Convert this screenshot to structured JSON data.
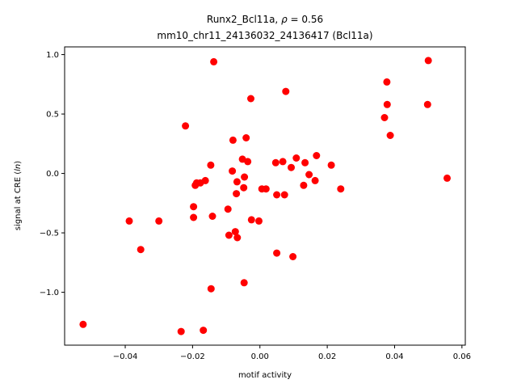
{
  "chart_data": {
    "type": "scatter",
    "title_line1": "Runx2_Bcl11a, ρ = 0.56",
    "title_line2": "mm10_chr11_24136032_24136417 (Bcl11a)",
    "xlabel": "motif activity",
    "ylabel": "signal at CRE (ln)",
    "xlim": [
      -0.058,
      0.061
    ],
    "ylim": [
      -1.445,
      1.065
    ],
    "xticks": [
      -0.04,
      -0.02,
      0.0,
      0.02,
      0.04,
      0.06
    ],
    "xtick_labels": [
      "−0.04",
      "−0.02",
      "0.00",
      "0.02",
      "0.04",
      "0.06"
    ],
    "yticks": [
      -1.0,
      -0.5,
      0.0,
      0.5,
      1.0
    ],
    "ytick_labels": [
      "−1.0",
      "−0.5",
      "0.0",
      "0.5",
      "1.0"
    ],
    "grid": false,
    "marker_color": "#ff0000",
    "points": [
      {
        "x": -0.0525,
        "y": -1.27
      },
      {
        "x": -0.0388,
        "y": -0.4
      },
      {
        "x": -0.0354,
        "y": -0.64
      },
      {
        "x": -0.03,
        "y": -0.4
      },
      {
        "x": -0.0234,
        "y": -1.33
      },
      {
        "x": -0.0221,
        "y": 0.4
      },
      {
        "x": -0.0197,
        "y": -0.28
      },
      {
        "x": -0.0197,
        "y": -0.37
      },
      {
        "x": -0.0192,
        "y": -0.1
      },
      {
        "x": -0.0188,
        "y": -0.08
      },
      {
        "x": -0.0177,
        "y": -0.08
      },
      {
        "x": -0.0168,
        "y": -1.32
      },
      {
        "x": -0.0162,
        "y": -0.06
      },
      {
        "x": -0.0146,
        "y": 0.07
      },
      {
        "x": -0.0145,
        "y": -0.97
      },
      {
        "x": -0.0141,
        "y": -0.36
      },
      {
        "x": -0.0137,
        "y": 0.94
      },
      {
        "x": -0.0095,
        "y": -0.3
      },
      {
        "x": -0.0092,
        "y": -0.52
      },
      {
        "x": -0.0082,
        "y": 0.02
      },
      {
        "x": -0.008,
        "y": 0.28
      },
      {
        "x": -0.0073,
        "y": -0.49
      },
      {
        "x": -0.007,
        "y": -0.17
      },
      {
        "x": -0.0068,
        "y": -0.07
      },
      {
        "x": -0.0067,
        "y": -0.54
      },
      {
        "x": -0.0052,
        "y": 0.12
      },
      {
        "x": -0.0048,
        "y": -0.12
      },
      {
        "x": -0.0047,
        "y": -0.92
      },
      {
        "x": -0.0046,
        "y": -0.03
      },
      {
        "x": -0.0041,
        "y": 0.3
      },
      {
        "x": -0.0036,
        "y": 0.1
      },
      {
        "x": -0.0027,
        "y": 0.63
      },
      {
        "x": -0.0025,
        "y": -0.39
      },
      {
        "x": -0.0003,
        "y": -0.4
      },
      {
        "x": 0.0006,
        "y": -0.13
      },
      {
        "x": 0.0018,
        "y": -0.13
      },
      {
        "x": 0.0047,
        "y": 0.09
      },
      {
        "x": 0.005,
        "y": -0.18
      },
      {
        "x": 0.005,
        "y": -0.67
      },
      {
        "x": 0.0068,
        "y": 0.1
      },
      {
        "x": 0.0073,
        "y": -0.18
      },
      {
        "x": 0.0077,
        "y": 0.69
      },
      {
        "x": 0.0093,
        "y": 0.05
      },
      {
        "x": 0.0098,
        "y": -0.7
      },
      {
        "x": 0.0108,
        "y": 0.13
      },
      {
        "x": 0.013,
        "y": -0.1
      },
      {
        "x": 0.0134,
        "y": 0.09
      },
      {
        "x": 0.0146,
        "y": -0.01
      },
      {
        "x": 0.0164,
        "y": -0.06
      },
      {
        "x": 0.0168,
        "y": 0.15
      },
      {
        "x": 0.0212,
        "y": 0.07
      },
      {
        "x": 0.024,
        "y": -0.13
      },
      {
        "x": 0.037,
        "y": 0.47
      },
      {
        "x": 0.0377,
        "y": 0.77
      },
      {
        "x": 0.0378,
        "y": 0.58
      },
      {
        "x": 0.0387,
        "y": 0.32
      },
      {
        "x": 0.0498,
        "y": 0.58
      },
      {
        "x": 0.05,
        "y": 0.95
      },
      {
        "x": 0.0556,
        "y": -0.04
      }
    ]
  }
}
